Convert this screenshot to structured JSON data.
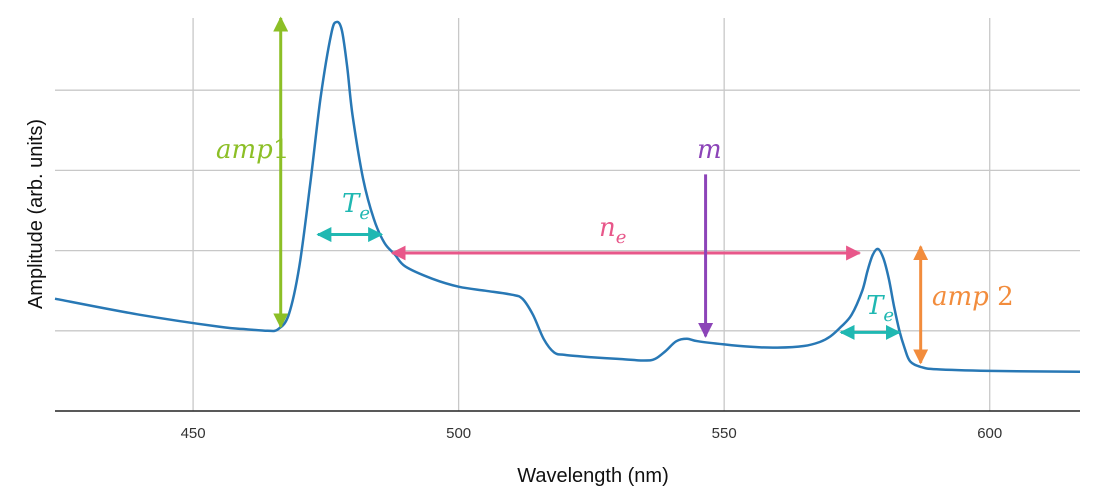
{
  "chart_data": {
    "type": "line",
    "title": "",
    "xlabel": "Wavelength (nm)",
    "ylabel": "Amplitude (arb. units)",
    "xlim": [
      424,
      617
    ],
    "ylim": [
      0,
      5
    ],
    "x_ticks": [
      450,
      500,
      550,
      600
    ],
    "y_gridlines": [
      1,
      2,
      3,
      4
    ],
    "grid": true,
    "line_color": "#2878b5",
    "series": [
      {
        "x": [
          424,
          440,
          455,
          460,
          464,
          466,
          468,
          470,
          472,
          474,
          476,
          477,
          478,
          479,
          480,
          482,
          484,
          486,
          488,
          490,
          495,
          500,
          505,
          510,
          512,
          514,
          516,
          518,
          520,
          525,
          530,
          535,
          537,
          539,
          541,
          543,
          545,
          550,
          555,
          560,
          565,
          568,
          570,
          572,
          574,
          576,
          577,
          578,
          579,
          580,
          581,
          582,
          583,
          584,
          585,
          587,
          590,
          600,
          617
        ],
        "y": [
          1.4,
          1.2,
          1.05,
          1.02,
          1.0,
          1.02,
          1.2,
          1.8,
          2.8,
          3.9,
          4.7,
          4.85,
          4.75,
          4.3,
          3.7,
          2.9,
          2.4,
          2.1,
          1.95,
          1.8,
          1.65,
          1.55,
          1.5,
          1.45,
          1.4,
          1.2,
          0.9,
          0.73,
          0.7,
          0.67,
          0.65,
          0.63,
          0.65,
          0.75,
          0.87,
          0.9,
          0.87,
          0.83,
          0.8,
          0.79,
          0.81,
          0.86,
          0.93,
          1.05,
          1.2,
          1.5,
          1.75,
          1.95,
          2.02,
          1.9,
          1.65,
          1.3,
          1.0,
          0.78,
          0.62,
          0.55,
          0.52,
          0.5,
          0.49
        ]
      }
    ],
    "annotations": [
      {
        "label": "amp1",
        "text_main": "amp",
        "text_tail": "1",
        "color": "#8cbf26",
        "kind": "vertical-double-arrow",
        "x": 466.5,
        "y_from": 1.05,
        "y_to": 4.9
      },
      {
        "label": "T_e",
        "text_main": "T",
        "text_sub": "e",
        "color": "#20b8b2",
        "kind": "horizontal-double-arrow",
        "y": 2.2,
        "x_from": 473.5,
        "x_to": 485.5
      },
      {
        "label": "n_e",
        "text_main": "n",
        "text_sub": "e",
        "color": "#e8578a",
        "kind": "horizontal-double-arrow",
        "y": 1.97,
        "x_from": 487.5,
        "x_to": 575.5
      },
      {
        "label": "m",
        "text_main": "m",
        "text_sub": "",
        "color": "#8c44b8",
        "kind": "down-arrow",
        "x": 546.5,
        "y_from": 2.95,
        "y_to": 0.93
      },
      {
        "label": "T_e",
        "text_main": "T",
        "text_sub": "e",
        "color": "#20b8b2",
        "kind": "horizontal-double-arrow",
        "y": 0.98,
        "x_from": 572,
        "x_to": 583
      },
      {
        "label": "amp 2",
        "text_main": "amp",
        "text_tail": " 2",
        "color": "#f28c3c",
        "kind": "vertical-double-arrow",
        "x": 587,
        "y_from": 0.6,
        "y_to": 2.05
      }
    ]
  }
}
